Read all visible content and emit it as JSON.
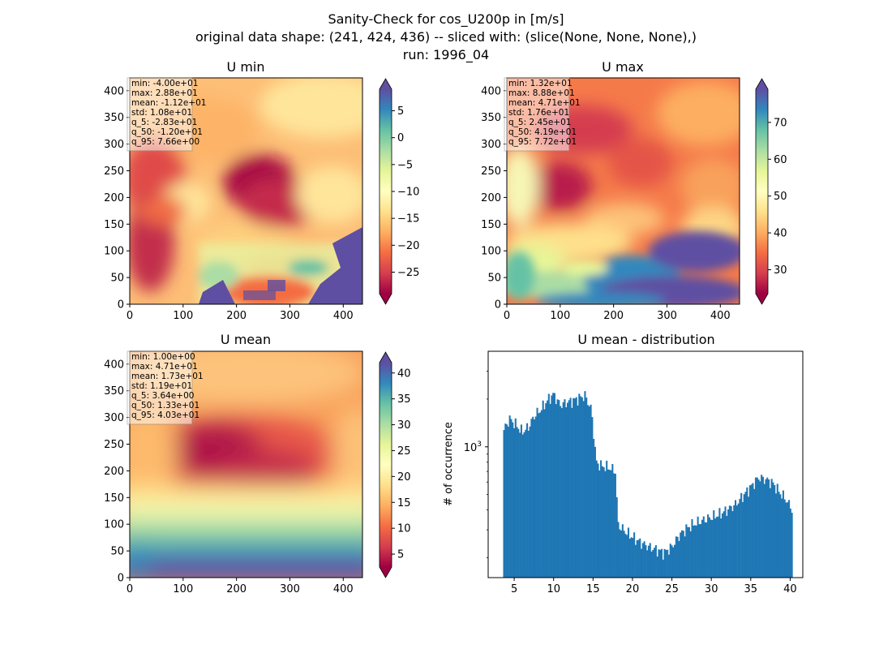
{
  "figure": {
    "suptitle_lines": [
      "Sanity-Check for cos_U200p in [m/s]",
      "original data shape: (241, 424, 436) -- sliced with: (slice(None, None, None),)",
      "run: 1996_04"
    ]
  },
  "chart_data": [
    {
      "type": "heatmap",
      "title": "U min",
      "colormap": "Spectral",
      "extend": "both",
      "x_ticks": [
        "0",
        "100",
        "200",
        "300",
        "400"
      ],
      "y_ticks": [
        "0",
        "50",
        "100",
        "150",
        "200",
        "250",
        "300",
        "350",
        "400"
      ],
      "xlim": [
        0,
        436
      ],
      "ylim": [
        0,
        424
      ],
      "colorbar": {
        "range": [
          -29,
          9
        ],
        "ticks": [
          -25,
          -20,
          -15,
          -10,
          -5,
          0,
          5
        ],
        "tick_labels": [
          "−25",
          "−20",
          "−15",
          "−10",
          "−5",
          "0",
          "5"
        ]
      },
      "stats": [
        "min: -4.00e+01",
        "max: 2.88e+01",
        "mean: -1.12e+01",
        "std: 1.08e+01",
        "q_5: -2.83e+01",
        "q_50: -1.20e+01",
        "q_95: 7.66e+00"
      ]
    },
    {
      "type": "heatmap",
      "title": "U max",
      "colormap": "Spectral",
      "extend": "both",
      "x_ticks": [
        "0",
        "100",
        "200",
        "300",
        "400"
      ],
      "y_ticks": [
        "0",
        "50",
        "100",
        "150",
        "200",
        "250",
        "300",
        "350",
        "400"
      ],
      "xlim": [
        0,
        436
      ],
      "ylim": [
        0,
        424
      ],
      "colorbar": {
        "range": [
          23.5,
          79
        ],
        "ticks": [
          30,
          40,
          50,
          60,
          70
        ],
        "tick_labels": [
          "30",
          "40",
          "50",
          "60",
          "70"
        ]
      },
      "stats": [
        "min: 1.32e+01",
        "max: 8.88e+01",
        "mean: 4.71e+01",
        "std: 1.76e+01",
        "q_5: 2.45e+01",
        "q_50: 4.19e+01",
        "q_95: 7.72e+01"
      ]
    },
    {
      "type": "heatmap",
      "title": "U mean",
      "colormap": "Spectral",
      "extend": "both",
      "x_ticks": [
        "0",
        "100",
        "200",
        "300",
        "400"
      ],
      "y_ticks": [
        "0",
        "50",
        "100",
        "150",
        "200",
        "250",
        "300",
        "350",
        "400"
      ],
      "xlim": [
        0,
        436
      ],
      "ylim": [
        0,
        424
      ],
      "colorbar": {
        "range": [
          2.5,
          42
        ],
        "ticks": [
          5,
          10,
          15,
          20,
          25,
          30,
          35,
          40
        ],
        "tick_labels": [
          "5",
          "10",
          "15",
          "20",
          "25",
          "30",
          "35",
          "40"
        ]
      },
      "stats": [
        "min: 1.00e+00",
        "max: 4.71e+01",
        "mean: 1.73e+01",
        "std: 1.19e+01",
        "q_5: 3.64e+00",
        "q_50: 1.33e+01",
        "q_95: 4.03e+01"
      ]
    },
    {
      "type": "bar",
      "title": "U mean - distribution",
      "ylabel": "# of occurrence",
      "ylog": true,
      "xlim": [
        1.7,
        41.6
      ],
      "ylim": [
        150,
        4000
      ],
      "x_ticks": [
        "5",
        "10",
        "15",
        "20",
        "25",
        "30",
        "35",
        "40"
      ],
      "y_tick_label": "10",
      "y_tick_exp": "3",
      "color": "#1f77b4",
      "bin_start": 3.6,
      "bin_end": 40.3,
      "x": [
        3.6,
        4.4,
        5.2,
        6.0,
        6.8,
        7.6,
        8.4,
        9.2,
        10.0,
        10.8,
        11.6,
        12.4,
        13.2,
        14.0,
        14.8,
        15.4,
        16.0,
        17.0,
        17.9,
        18.1,
        19.0,
        20.0,
        21.0,
        22.0,
        23.0,
        24.0,
        25.0,
        26.0,
        27.0,
        28.0,
        29.0,
        30.0,
        31.0,
        32.0,
        33.0,
        34.0,
        35.0,
        36.0,
        37.0,
        37.8,
        38.6,
        39.4,
        40.3
      ],
      "values": [
        1250,
        1500,
        1380,
        1240,
        1330,
        1580,
        1720,
        1960,
        2150,
        1830,
        1900,
        1950,
        2030,
        2100,
        1700,
        800,
        760,
        740,
        700,
        325,
        295,
        270,
        250,
        235,
        225,
        215,
        235,
        280,
        310,
        330,
        345,
        360,
        375,
        400,
        430,
        490,
        560,
        640,
        620,
        590,
        520,
        470,
        400
      ]
    }
  ]
}
